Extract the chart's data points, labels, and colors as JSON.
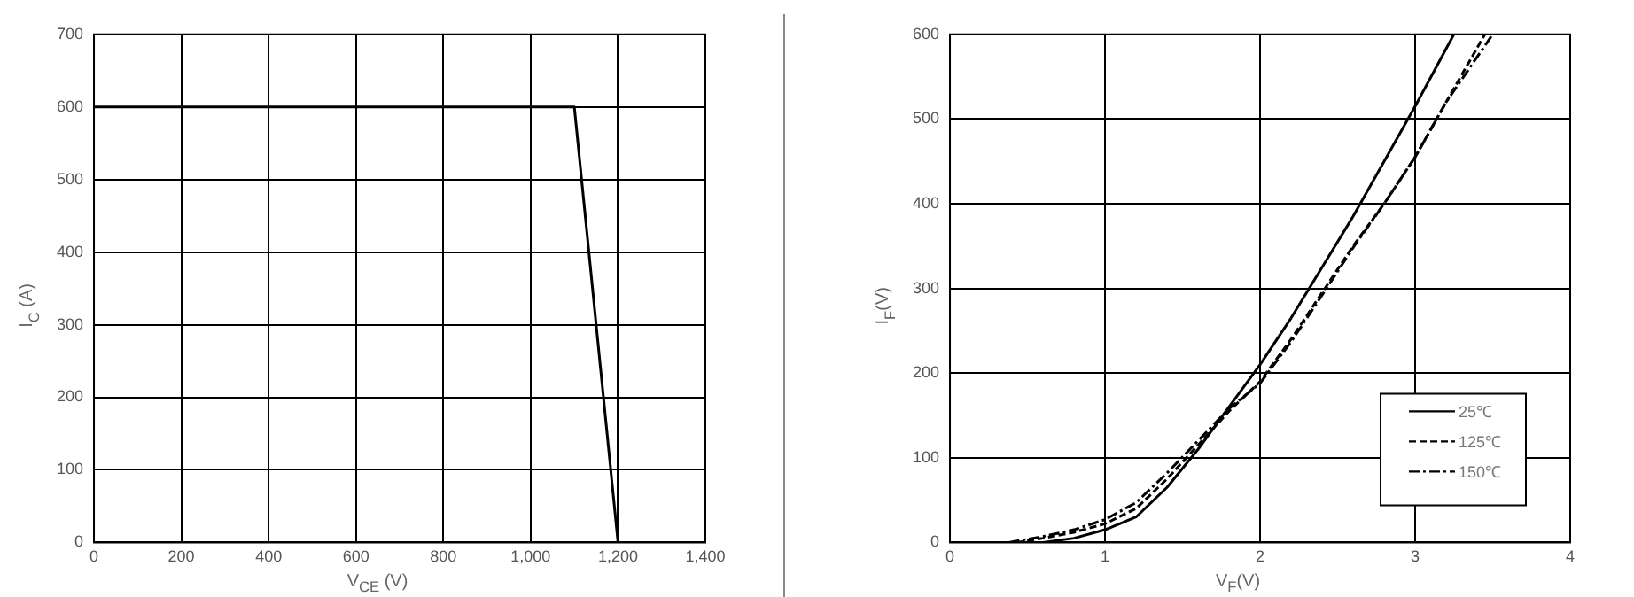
{
  "chart_data": [
    {
      "type": "line",
      "xlabel": "V$_{CE}$ (V)",
      "ylabel": "I$_{C}$ (A)",
      "grid": true,
      "marker": "none",
      "line_style": "solid",
      "xlim": [
        0,
        1400
      ],
      "ylim": [
        0,
        700
      ],
      "xticks": [
        0,
        200,
        400,
        600,
        800,
        {
          "value": 1000,
          "label": "1,000"
        },
        {
          "value": 1200,
          "label": "1,200"
        },
        {
          "value": 1400,
          "label": "1,400"
        }
      ],
      "yticks": [
        0,
        100,
        200,
        300,
        400,
        500,
        600,
        700
      ],
      "series": [
        {
          "color": "#000000",
          "x": [
            0,
            1100,
            1200
          ],
          "values": [
            600,
            600,
            0
          ]
        }
      ]
    },
    {
      "type": "line",
      "xlabel": "V$_{F}$(V)",
      "ylabel": "I$_{F}$(V)",
      "grid": true,
      "marker": "none",
      "legend": "bottom right",
      "xlim": [
        0,
        4
      ],
      "ylim": [
        0,
        600
      ],
      "xticks": [
        0,
        1,
        2,
        3,
        4
      ],
      "yticks": [
        0,
        100,
        200,
        300,
        400,
        500,
        600
      ],
      "series": [
        {
          "name": "25℃",
          "color": "#000000",
          "line_style": "solid",
          "x": [
            0.6,
            0.8,
            1.0,
            1.2,
            1.4,
            1.6,
            1.8,
            2.0,
            2.2,
            2.4,
            2.6,
            2.8,
            3.0,
            3.25
          ],
          "values": [
            0,
            5,
            15,
            30,
            65,
            110,
            160,
            210,
            265,
            325,
            385,
            450,
            515,
            600
          ]
        },
        {
          "name": "125℃",
          "color": "#000000",
          "line_style": "dashed",
          "x": [
            0.43,
            0.6,
            0.8,
            1.0,
            1.2,
            1.4,
            1.6,
            1.8,
            2.0,
            2.2,
            2.4,
            2.6,
            2.8,
            3.0,
            3.2,
            3.45
          ],
          "values": [
            0,
            5,
            12,
            22,
            40,
            75,
            115,
            155,
            190,
            240,
            295,
            350,
            400,
            455,
            520,
            600
          ]
        },
        {
          "name": "150℃",
          "color": "#000000",
          "line_style": "dotted",
          "x": [
            0.38,
            0.6,
            0.8,
            1.0,
            1.2,
            1.4,
            1.6,
            1.8,
            2.0,
            2.2,
            2.4,
            2.6,
            2.8,
            3.0,
            3.2,
            3.5
          ],
          "values": [
            0,
            7,
            15,
            27,
            47,
            82,
            120,
            158,
            188,
            237,
            292,
            348,
            400,
            455,
            520,
            600
          ]
        }
      ]
    }
  ]
}
